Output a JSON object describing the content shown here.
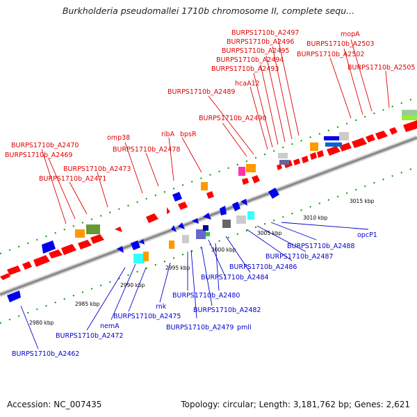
{
  "title": "Burkholderia pseudomallei 1710b chromosome II, complete sequ...",
  "footer": {
    "accession": "Accession: NC_007435",
    "summary": "Topology: circular; Length: 3,181,762 bp; Genes: 2,621"
  },
  "colors": {
    "forward_gene": "#ff0000",
    "reverse_gene": "#0000ee",
    "forward_label": "#e00000",
    "reverse_label": "#0000cc",
    "backbone": "#999999",
    "tick": "#009900"
  },
  "forward_labels": [
    "BURPS1710b_A2497",
    "BURPS1710b_A2496",
    "BURPS1710b_A2495",
    "BURPS1710b_A2494",
    "BURPS1710b_A2493",
    "hcaA12",
    "BURPS1710b_A2489",
    "BURPS1710b_A2490",
    "mopA",
    "BURPS1710b_A2503",
    "BURPS1710b_A2502",
    "BURPS1710b_A2505",
    "omp38",
    "ribA",
    "bpsR",
    "BURPS1710b_A2478",
    "BURPS1710b_A2470",
    "BURPS1710b_A2469",
    "BURPS1710b_A2473",
    "BURPS1710b_A2471"
  ],
  "reverse_labels": [
    "opcP1",
    "BURPS1710b_A2488",
    "BURPS1710b_A2487",
    "BURPS1710b_A2486",
    "BURPS1710b_A2484",
    "BURPS1710b_A2480",
    "BURPS1710b_A2482",
    "pmlI",
    "BURPS1710b_A2479",
    "rnk",
    "BURPS1710b_A2475",
    "nemA",
    "BURPS1710b_A2472",
    "BURPS1710b_A2462"
  ],
  "scale_labels": [
    "3015 kbp",
    "3010 kbp",
    "3005 kbp",
    "3000 kbp",
    "2995 kbp",
    "2990 kbp",
    "2985 kbp",
    "2980 kbp"
  ]
}
